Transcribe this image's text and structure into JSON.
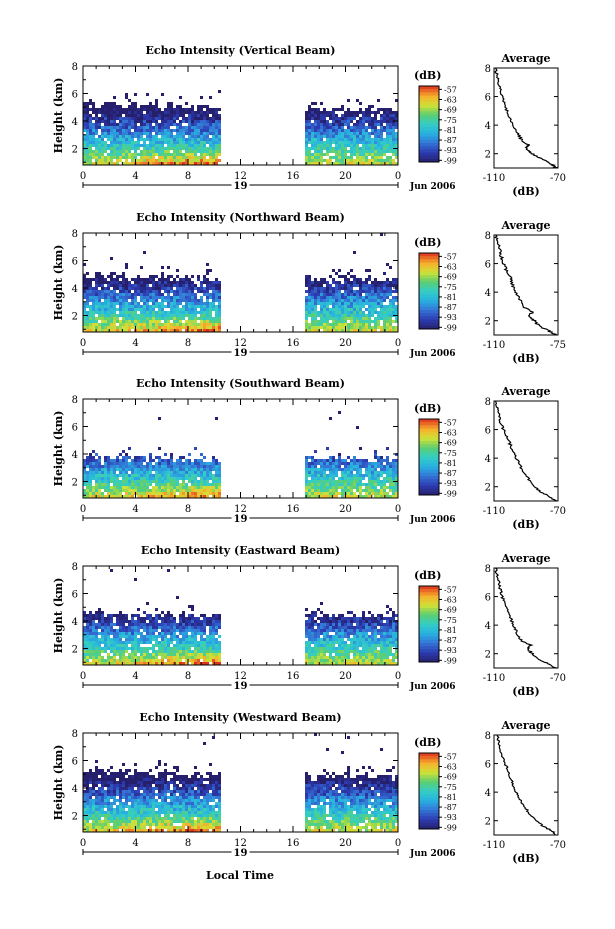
{
  "figure": {
    "time_axis_title": "Local Time",
    "date_label": "Jun 2006",
    "day_label": "19",
    "colorbar_unit": "(dB)",
    "avg_title": "Average",
    "avg_xlabel": "(dB)"
  },
  "chart_data": [
    {
      "type": "heatmap",
      "title": "Echo Intensity (Vertical Beam)",
      "ylabel": "Height (km)",
      "xlabel": "Local Time",
      "x_ticks": [
        "0",
        "4",
        "8",
        "12",
        "16",
        "20",
        "0"
      ],
      "y_ticks": [
        "2",
        "4",
        "6",
        "8"
      ],
      "xlim_hours": [
        0,
        24
      ],
      "ylim_km": [
        0.8,
        8.0
      ],
      "colorbar": {
        "unit": "(dB)",
        "ticks": [
          "-57",
          "-63",
          "-69",
          "-75",
          "-81",
          "-87",
          "-93",
          "-99"
        ],
        "range": [
          -100,
          -55
        ]
      },
      "data_gap_hours": [
        10.6,
        16.9
      ],
      "echo_top_km": [
        4.8,
        5.3
      ],
      "average_profile": {
        "title": "Average",
        "xlabel": "(dB)",
        "xticks": [
          "-110",
          "-70"
        ],
        "yticks": [
          "2",
          "4",
          "6",
          "8"
        ],
        "xlim": [
          -110,
          -70
        ],
        "ylim": [
          1,
          8
        ],
        "height_km": [
          1.0,
          1.2,
          1.5,
          1.8,
          2.0,
          2.2,
          2.4,
          2.6,
          2.8,
          3.2,
          3.6,
          4.0,
          4.5,
          5.0,
          5.5,
          6.0,
          6.5,
          7.0,
          7.5,
          8.0
        ],
        "value_db": [
          -71,
          -73,
          -78,
          -83,
          -86,
          -88,
          -90,
          -88,
          -92,
          -94,
          -96,
          -98,
          -100,
          -102,
          -103,
          -105,
          -106,
          -107,
          -108,
          -109
        ]
      }
    },
    {
      "type": "heatmap",
      "title": "Echo Intensity (Northward Beam)",
      "ylabel": "Height (km)",
      "xlabel": "Local Time",
      "x_ticks": [
        "0",
        "4",
        "8",
        "12",
        "16",
        "20",
        "0"
      ],
      "y_ticks": [
        "2",
        "4",
        "6",
        "8"
      ],
      "xlim_hours": [
        0,
        24
      ],
      "ylim_km": [
        0.8,
        8.0
      ],
      "colorbar": {
        "unit": "(dB)",
        "ticks": [
          "-57",
          "-63",
          "-69",
          "-75",
          "-81",
          "-87",
          "-93",
          "-99"
        ],
        "range": [
          -100,
          -55
        ]
      },
      "data_gap_hours": [
        10.6,
        16.9
      ],
      "echo_top_km": [
        4.6,
        4.9
      ],
      "average_profile": {
        "title": "Average",
        "xlabel": "(dB)",
        "xticks": [
          "-110",
          "-75"
        ],
        "yticks": [
          "2",
          "4",
          "6",
          "8"
        ],
        "xlim": [
          -110,
          -75
        ],
        "ylim": [
          1,
          8
        ],
        "height_km": [
          1.0,
          1.3,
          1.6,
          2.0,
          2.3,
          2.6,
          3.0,
          3.5,
          4.0,
          4.5,
          5.0,
          5.5,
          6.0,
          6.5,
          7.0,
          7.5,
          8.0
        ],
        "value_db": [
          -76,
          -80,
          -85,
          -88,
          -91,
          -89,
          -94,
          -96,
          -98,
          -100,
          -101,
          -103,
          -105,
          -106,
          -107,
          -108,
          -109
        ]
      }
    },
    {
      "type": "heatmap",
      "title": "Echo Intensity (Southward Beam)",
      "ylabel": "Height (km)",
      "xlabel": "Local Time",
      "x_ticks": [
        "0",
        "4",
        "8",
        "12",
        "16",
        "20",
        "0"
      ],
      "y_ticks": [
        "2",
        "4",
        "6",
        "8"
      ],
      "xlim_hours": [
        0,
        24
      ],
      "ylim_km": [
        0.8,
        8.0
      ],
      "colorbar": {
        "unit": "(dB)",
        "ticks": [
          "-57",
          "-63",
          "-69",
          "-75",
          "-81",
          "-87",
          "-93",
          "-99"
        ],
        "range": [
          -100,
          -55
        ]
      },
      "data_gap_hours": [
        10.6,
        16.9
      ],
      "echo_top_km": [
        3.6,
        3.8
      ],
      "average_profile": {
        "title": "Average",
        "xlabel": "(dB)",
        "xticks": [
          "-110",
          "-70"
        ],
        "yticks": [
          "2",
          "4",
          "6",
          "8"
        ],
        "xlim": [
          -110,
          -70
        ],
        "ylim": [
          1,
          8
        ],
        "height_km": [
          1.0,
          1.3,
          1.6,
          2.0,
          2.5,
          3.0,
          3.5,
          4.0,
          4.5,
          5.0,
          5.5,
          6.0,
          6.5,
          7.0,
          7.5,
          8.0
        ],
        "value_db": [
          -71,
          -75,
          -80,
          -85,
          -88,
          -91,
          -94,
          -96,
          -98,
          -100,
          -102,
          -104,
          -106,
          -107,
          -108,
          -109
        ]
      }
    },
    {
      "type": "heatmap",
      "title": "Echo Intensity (Eastward Beam)",
      "ylabel": "Height (km)",
      "xlabel": "Local Time",
      "x_ticks": [
        "0",
        "4",
        "8",
        "12",
        "16",
        "20",
        "0"
      ],
      "y_ticks": [
        "2",
        "4",
        "6",
        "8"
      ],
      "xlim_hours": [
        0,
        24
      ],
      "ylim_km": [
        0.8,
        8.0
      ],
      "colorbar": {
        "unit": "(dB)",
        "ticks": [
          "-57",
          "-63",
          "-69",
          "-75",
          "-81",
          "-87",
          "-93",
          "-99"
        ],
        "range": [
          -100,
          -55
        ]
      },
      "data_gap_hours": [
        10.6,
        16.9
      ],
      "echo_top_km": [
        4.4,
        4.6
      ],
      "average_profile": {
        "title": "Average",
        "xlabel": "(dB)",
        "xticks": [
          "-110",
          "-70"
        ],
        "yticks": [
          "2",
          "4",
          "6",
          "8"
        ],
        "xlim": [
          -110,
          -70
        ],
        "ylim": [
          1,
          8
        ],
        "height_km": [
          1.0,
          1.3,
          1.6,
          2.0,
          2.3,
          2.6,
          2.9,
          3.3,
          3.8,
          4.3,
          5.0,
          5.5,
          6.0,
          6.5,
          7.0,
          7.5,
          8.0
        ],
        "value_db": [
          -71,
          -76,
          -82,
          -86,
          -89,
          -87,
          -93,
          -95,
          -97,
          -99,
          -101,
          -103,
          -105,
          -106,
          -107,
          -108,
          -109
        ]
      }
    },
    {
      "type": "heatmap",
      "title": "Echo Intensity (Westward Beam)",
      "ylabel": "Height (km)",
      "xlabel": "Local Time",
      "x_ticks": [
        "0",
        "4",
        "8",
        "12",
        "16",
        "20",
        "0"
      ],
      "y_ticks": [
        "2",
        "4",
        "6",
        "8"
      ],
      "xlim_hours": [
        0,
        24
      ],
      "ylim_km": [
        0.8,
        8.0
      ],
      "colorbar": {
        "unit": "(dB)",
        "ticks": [
          "-57",
          "-63",
          "-69",
          "-75",
          "-81",
          "-87",
          "-93",
          "-99"
        ],
        "range": [
          -100,
          -55
        ]
      },
      "data_gap_hours": [
        10.6,
        16.9
      ],
      "echo_top_km": [
        4.8,
        5.2
      ],
      "average_profile": {
        "title": "Average",
        "xlabel": "(dB)",
        "xticks": [
          "-110",
          "-70"
        ],
        "yticks": [
          "2",
          "4",
          "6",
          "8"
        ],
        "xlim": [
          -110,
          -70
        ],
        "ylim": [
          1,
          8
        ],
        "height_km": [
          1.0,
          1.3,
          1.6,
          2.0,
          2.5,
          3.0,
          3.5,
          4.0,
          4.5,
          5.0,
          5.5,
          6.0,
          6.5,
          7.0,
          7.5,
          8.0
        ],
        "value_db": [
          -71,
          -74,
          -79,
          -84,
          -88,
          -91,
          -94,
          -96,
          -98,
          -100,
          -101,
          -103,
          -105,
          -106,
          -107,
          -108
        ]
      }
    }
  ]
}
